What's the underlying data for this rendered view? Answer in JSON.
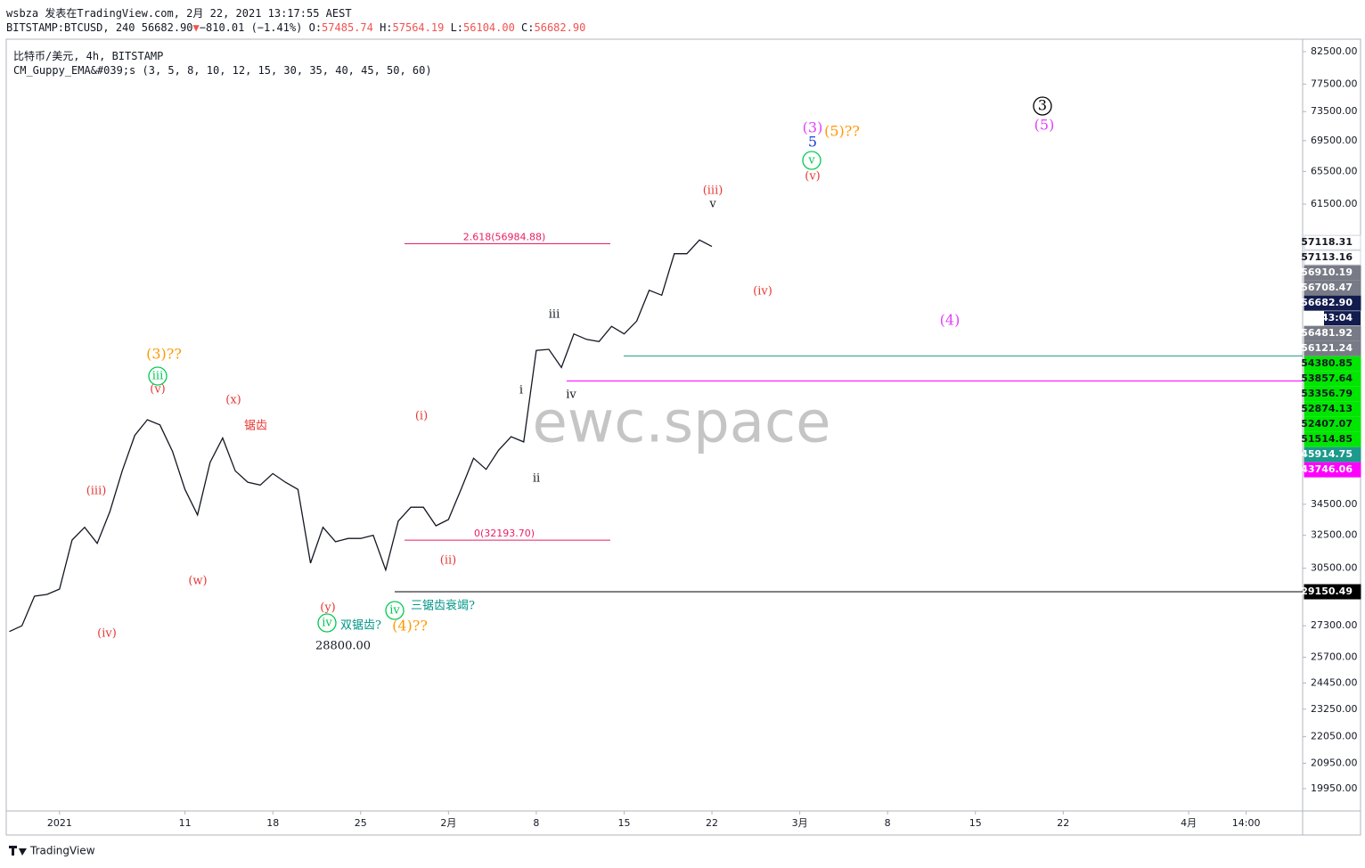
{
  "header": {
    "line1": "wsbza 发表在TradingView.com, 2月 22, 2021 13:17:55 AEST",
    "symbol": "BITSTAMP:BTCUSD, 240",
    "price": "56682.90",
    "arrow": "▼",
    "change": "−810.01 (−1.41%)",
    "ohlc": [
      {
        "k": "O:",
        "v": "57485.74"
      },
      {
        "k": "H:",
        "v": "57564.19"
      },
      {
        "k": "L:",
        "v": "56104.00"
      },
      {
        "k": "C:",
        "v": "56682.90"
      }
    ],
    "legend1": "比特币/美元, 4h, BITSTAMP",
    "legend2": "CM_Guppy_EMA&#039;s (3, 5, 8, 10, 12, 15, 30, 35, 40, 45, 50, 60)"
  },
  "footer": "TradingView",
  "chart_data": {
    "type": "line",
    "log_scale": true,
    "color": "#131722",
    "x": [
      "2020-12-28",
      "2020-12-29",
      "2020-12-30",
      "2020-12-31",
      "2021-01-01",
      "2021-01-02",
      "2021-01-03",
      "2021-01-04",
      "2021-01-05",
      "2021-01-06",
      "2021-01-07",
      "2021-01-08",
      "2021-01-09",
      "2021-01-10",
      "2021-01-11",
      "2021-01-12",
      "2021-01-13",
      "2021-01-14",
      "2021-01-15",
      "2021-01-16",
      "2021-01-17",
      "2021-01-18",
      "2021-01-19",
      "2021-01-20",
      "2021-01-21",
      "2021-01-22",
      "2021-01-23",
      "2021-01-24",
      "2021-01-25",
      "2021-01-26",
      "2021-01-27",
      "2021-01-28",
      "2021-01-29",
      "2021-01-30",
      "2021-01-31",
      "2021-02-01",
      "2021-02-02",
      "2021-02-03",
      "2021-02-04",
      "2021-02-05",
      "2021-02-06",
      "2021-02-07",
      "2021-02-08",
      "2021-02-09",
      "2021-02-10",
      "2021-02-11",
      "2021-02-12",
      "2021-02-13",
      "2021-02-14",
      "2021-02-15",
      "2021-02-16",
      "2021-02-17",
      "2021-02-18",
      "2021-02-19",
      "2021-02-20",
      "2021-02-21",
      "2021-02-22"
    ],
    "values": [
      27000,
      27300,
      28900,
      29000,
      29300,
      32200,
      33000,
      32000,
      34000,
      36800,
      39400,
      40600,
      40200,
      38200,
      35500,
      33800,
      37400,
      39200,
      36800,
      36000,
      35800,
      36600,
      36000,
      35500,
      30800,
      33000,
      32100,
      32300,
      32300,
      32500,
      30400,
      33400,
      34300,
      34300,
      33100,
      33500,
      35500,
      37700,
      36900,
      38300,
      39300,
      38900,
      46400,
      46500,
      44900,
      47900,
      47400,
      47200,
      48600,
      47900,
      49100,
      52100,
      51600,
      55900,
      55900,
      57400,
      56682.9
    ],
    "xlim": [
      "2020-12-27T18:00",
      "2021-04-10T02:00"
    ],
    "xticks": [
      {
        "value": "2021-01-01",
        "label": "2021"
      },
      {
        "value": "2021-01-11",
        "label": "11"
      },
      {
        "value": "2021-01-18",
        "label": "18"
      },
      {
        "value": "2021-01-25",
        "label": "25"
      },
      {
        "value": "2021-02-01",
        "label": "2月"
      },
      {
        "value": "2021-02-08",
        "label": "8"
      },
      {
        "value": "2021-02-15",
        "label": "15"
      },
      {
        "value": "2021-02-22",
        "label": "22"
      },
      {
        "value": "2021-03-01",
        "label": "3月"
      },
      {
        "value": "2021-03-08",
        "label": "8"
      },
      {
        "value": "2021-03-15",
        "label": "15"
      },
      {
        "value": "2021-03-22",
        "label": "22"
      },
      {
        "value": "2021-04-01",
        "label": "4月"
      },
      {
        "value": "2021-04-05T14:00",
        "label": "14:00"
      }
    ],
    "ylim": [
      19110,
      84500
    ],
    "yticks": [
      {
        "value": 82500,
        "label": "82500.00"
      },
      {
        "value": 77500,
        "label": "77500.00"
      },
      {
        "value": 73500,
        "label": "73500.00"
      },
      {
        "value": 69500,
        "label": "69500.00"
      },
      {
        "value": 65500,
        "label": "65500.00"
      },
      {
        "value": 61500,
        "label": "61500.00"
      },
      {
        "value": 34500,
        "label": "34500.00"
      },
      {
        "value": 32500,
        "label": "32500.00"
      },
      {
        "value": 30500,
        "label": "30500.00"
      },
      {
        "value": 27300,
        "label": "27300.00"
      },
      {
        "value": 25700,
        "label": "25700.00"
      },
      {
        "value": 24450,
        "label": "24450.00"
      },
      {
        "value": 23250,
        "label": "23250.00"
      },
      {
        "value": 22050,
        "label": "22050.00"
      },
      {
        "value": 20950,
        "label": "20950.00"
      },
      {
        "value": 19950,
        "label": "19950.00"
      }
    ],
    "price_tags": [
      {
        "value": 57118.31,
        "bg": "#ffffff",
        "fg": "#131722"
      },
      {
        "value": 57113.16,
        "bg": "#ffffff",
        "fg": "#131722"
      },
      {
        "value": 56910.19,
        "bg": "#787b86",
        "fg": "#ffffff"
      },
      {
        "value": 56708.47,
        "label": "56708.47",
        "bg": "#787b86",
        "fg": "#ffffff"
      },
      {
        "value": 56682.9,
        "label": "56682.90",
        "bg": "#131c4e",
        "fg": "#ffffff",
        "current": true
      },
      {
        "value": 56481.92,
        "bg": "#787b86",
        "fg": "#ffffff"
      },
      {
        "value": 56121.24,
        "bg": "#787b86",
        "fg": "#ffffff"
      },
      {
        "value": 54380.85,
        "bg": "#00e600",
        "fg": "#131722"
      },
      {
        "value": 53857.64,
        "bg": "#00e600",
        "fg": "#131722"
      },
      {
        "value": 53356.79,
        "bg": "#00e600",
        "fg": "#131722"
      },
      {
        "value": 52874.13,
        "bg": "#00e600",
        "fg": "#131722"
      },
      {
        "value": 52407.07,
        "bg": "#00e600",
        "fg": "#131722"
      },
      {
        "value": 51514.85,
        "bg": "#00e600",
        "fg": "#131722"
      },
      {
        "value": 45914.75,
        "bg": "#1c9a8c",
        "fg": "#ffffff",
        "line": true
      },
      {
        "value": 43746.06,
        "bg": "#ff00ff",
        "fg": "#ffffff",
        "line": true
      },
      {
        "value": 29150.49,
        "bg": "#000000",
        "fg": "#ffffff",
        "line": true
      }
    ],
    "countdown": "43:04",
    "fib": [
      {
        "label": "2.618(56984.88)",
        "value": 56984.88
      },
      {
        "label": "0(32193.70)",
        "value": 32193.7
      }
    ],
    "fib_color": "#e91e63",
    "watermark": "ewc.space",
    "annotations": [
      {
        "text": "(3)??",
        "color": "#ff9800"
      },
      {
        "text": "iii",
        "color": "#00c853",
        "circled": true
      },
      {
        "text": "(v)",
        "color": "#e53935"
      },
      {
        "text": "(x)",
        "color": "#e53935"
      },
      {
        "text": "锯齿",
        "color": "#e53935"
      },
      {
        "text": "(iii)",
        "color": "#e53935"
      },
      {
        "text": "(w)",
        "color": "#e53935"
      },
      {
        "text": "(iv)",
        "color": "#e53935"
      },
      {
        "text": "(y)",
        "color": "#e53935"
      },
      {
        "text": "iv",
        "color": "#00c853",
        "circled": true
      },
      {
        "text": "双锯齿?",
        "color": "#009688"
      },
      {
        "text": "28800.00",
        "color": "#131722"
      },
      {
        "text": "iv",
        "color": "#00c853",
        "circled": true
      },
      {
        "text": "三锯齿衰竭?",
        "color": "#009688"
      },
      {
        "text": "(4)??",
        "color": "#ff9800"
      },
      {
        "text": "(i)",
        "color": "#e53935"
      },
      {
        "text": "(ii)",
        "color": "#e53935"
      },
      {
        "text": "i",
        "color": "#131722"
      },
      {
        "text": "ii",
        "color": "#131722"
      },
      {
        "text": "iii",
        "color": "#131722"
      },
      {
        "text": "iv",
        "color": "#131722"
      },
      {
        "text": "(iii)",
        "color": "#e53935"
      },
      {
        "text": "v",
        "color": "#131722"
      },
      {
        "text": "(iv)",
        "color": "#e53935"
      },
      {
        "text": "(3)",
        "color": "#e040fb"
      },
      {
        "text": "5",
        "color": "#1e3ddb"
      },
      {
        "text": "(5)??",
        "color": "#ff9800"
      },
      {
        "text": "v",
        "color": "#00c853",
        "circled": true
      },
      {
        "text": "(v)",
        "color": "#e53935"
      },
      {
        "text": "3",
        "color": "#000000",
        "circled": true
      },
      {
        "text": "(5)",
        "color": "#e040fb"
      },
      {
        "text": "(4)",
        "color": "#e040fb"
      }
    ]
  }
}
